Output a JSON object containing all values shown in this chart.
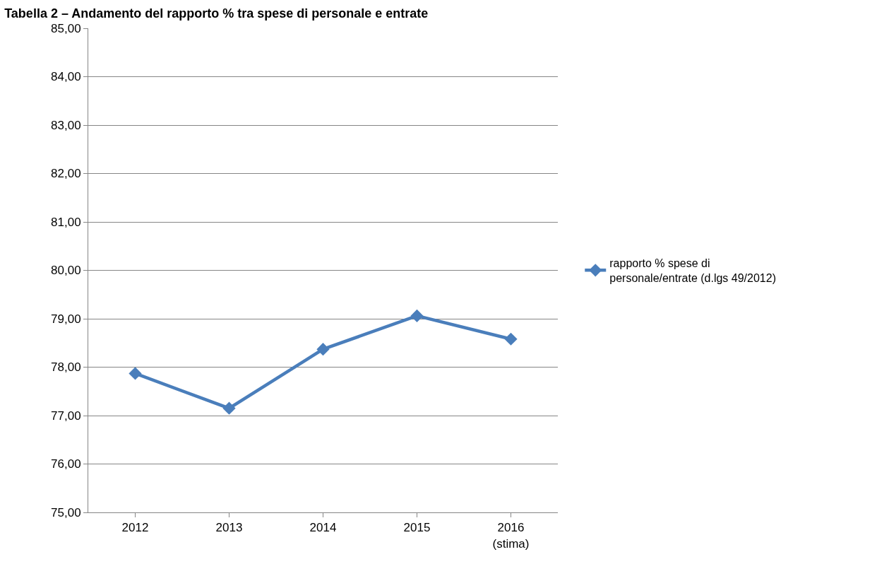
{
  "chart_data": {
    "type": "line",
    "title": "Tabella 2 – Andamento del rapporto % tra spese di personale e entrate",
    "categories": [
      "2012",
      "2013",
      "2014",
      "2015",
      "2016\n(stima)"
    ],
    "series": [
      {
        "name": "rapporto % spese di\npersonale/entrate (d.lgs 49/2012)",
        "color": "#4a7ebb",
        "values": [
          77.87,
          77.15,
          78.37,
          79.06,
          78.58
        ]
      }
    ],
    "ylim": [
      75,
      85
    ],
    "yticks": [
      {
        "value": 75,
        "label": "75,00"
      },
      {
        "value": 76,
        "label": "76,00"
      },
      {
        "value": 77,
        "label": "77,00"
      },
      {
        "value": 78,
        "label": "78,00"
      },
      {
        "value": 79,
        "label": "79,00"
      },
      {
        "value": 80,
        "label": "80,00"
      },
      {
        "value": 81,
        "label": "81,00"
      },
      {
        "value": 82,
        "label": "82,00"
      },
      {
        "value": 83,
        "label": "83,00"
      },
      {
        "value": 84,
        "label": "84,00"
      },
      {
        "value": 85,
        "label": "85,00"
      }
    ],
    "grid": "y",
    "legend": "right",
    "marker": "diamond",
    "line_style": "solid"
  }
}
